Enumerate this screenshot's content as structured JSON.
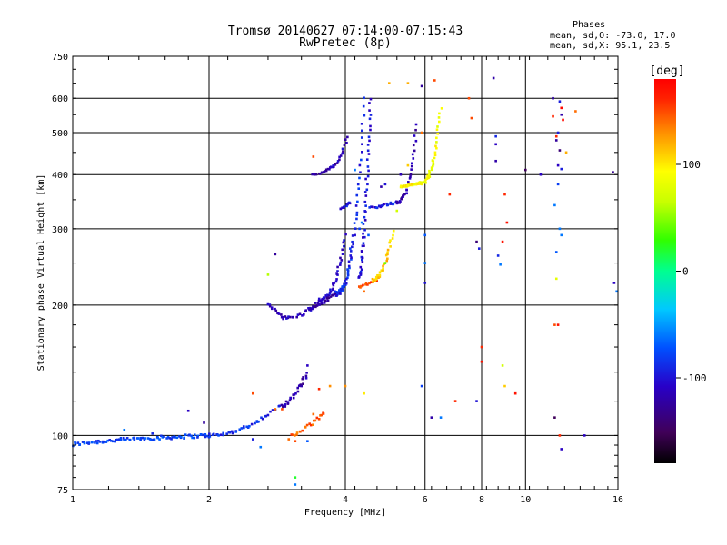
{
  "chart_data": {
    "type": "scatter",
    "title": "Tromsø 20140627 07:14:00-07:15:43",
    "subtitle": "RwPretec (8p)",
    "xlabel": "Frequency [MHz]",
    "ylabel": "Stationary phase Virtual Height [km]",
    "x_scale": "log",
    "y_scale": "log",
    "xlim": [
      1,
      16
    ],
    "ylim": [
      75,
      750
    ],
    "x_ticks": [
      1,
      2,
      4,
      6,
      8,
      10,
      16
    ],
    "x_tick_labels": [
      "1",
      "2",
      "4",
      "6",
      "8",
      "10",
      "16"
    ],
    "y_ticks": [
      75,
      100,
      200,
      300,
      400,
      500,
      600,
      750
    ],
    "y_tick_labels": [
      "75",
      "100",
      "200",
      "300",
      "400",
      "500",
      "600",
      "750"
    ],
    "grid": true,
    "legend": {
      "placement": "top-right",
      "title": "Phases",
      "lines": [
        "mean, sd,O: -73.0, 17.0",
        "mean, sd,X:  95.1, 23.5"
      ]
    },
    "colorbar": {
      "title": "[deg]",
      "range": [
        -180,
        180
      ],
      "ticks": [
        100,
        0,
        -100
      ],
      "tick_labels": [
        "100",
        "0",
        "-100"
      ]
    },
    "traces": [
      {
        "f0": 1.0,
        "f1": 2.0,
        "h0": 95,
        "h1": 100,
        "shape": 0.6,
        "n": 90,
        "phase": -80,
        "jit": 2
      },
      {
        "f0": 2.0,
        "f1": 2.9,
        "h0": 100,
        "h1": 118,
        "shape": 1.9,
        "n": 40,
        "phase": -88,
        "jit": 2
      },
      {
        "f0": 2.9,
        "f1": 3.3,
        "h0": 118,
        "h1": 140,
        "shape": 1.7,
        "n": 25,
        "phase": -120,
        "jit": 4
      },
      {
        "f0": 2.7,
        "f1": 2.95,
        "h0": 200,
        "h1": 186,
        "shape": 1.0,
        "n": 15,
        "phase": -110,
        "jit": 3
      },
      {
        "f0": 2.95,
        "f1": 3.5,
        "h0": 187,
        "h1": 205,
        "shape": 2.2,
        "n": 20,
        "phase": -112,
        "jit": 3
      },
      {
        "f0": 3.5,
        "f1": 4.0,
        "h0": 205,
        "h1": 290,
        "shape": 2.4,
        "n": 40,
        "phase": -110,
        "jit": 4
      },
      {
        "f0": 3.3,
        "f1": 3.8,
        "h0": 196,
        "h1": 213,
        "shape": 1.6,
        "n": 25,
        "phase": -118,
        "jit": 2
      },
      {
        "f0": 3.8,
        "f1": 4.4,
        "h0": 213,
        "h1": 600,
        "shape": 2.8,
        "n": 65,
        "phase": -90,
        "jit": 6
      },
      {
        "f0": 3.4,
        "f1": 3.7,
        "h0": 400,
        "h1": 412,
        "shape": 1.5,
        "n": 14,
        "phase": -125,
        "jit": 3
      },
      {
        "f0": 3.7,
        "f1": 4.05,
        "h0": 415,
        "h1": 490,
        "shape": 1.8,
        "n": 18,
        "phase": -110,
        "jit": 4
      },
      {
        "f0": 3.9,
        "f1": 4.1,
        "h0": 332,
        "h1": 345,
        "shape": 1.0,
        "n": 12,
        "phase": -100,
        "jit": 3
      },
      {
        "f0": 4.3,
        "f1": 4.55,
        "h0": 230,
        "h1": 600,
        "shape": 1.5,
        "n": 50,
        "phase": -100,
        "jit": 8
      },
      {
        "f0": 4.55,
        "f1": 5.2,
        "h0": 335,
        "h1": 345,
        "shape": 1.0,
        "n": 25,
        "phase": -95,
        "jit": 4
      },
      {
        "f0": 5.2,
        "f1": 5.75,
        "h0": 345,
        "h1": 520,
        "shape": 2.5,
        "n": 35,
        "phase": -118,
        "jit": 5
      },
      {
        "f0": 4.3,
        "f1": 4.7,
        "h0": 220,
        "h1": 228,
        "shape": 1.0,
        "n": 14,
        "phase": 150,
        "jit": 2
      },
      {
        "f0": 4.6,
        "f1": 5.1,
        "h0": 228,
        "h1": 295,
        "shape": 2.0,
        "n": 32,
        "phase": 110,
        "jit": 4
      },
      {
        "f0": 5.3,
        "f1": 5.85,
        "h0": 375,
        "h1": 382,
        "shape": 1.0,
        "n": 28,
        "phase": 95,
        "jit": 3
      },
      {
        "f0": 5.85,
        "f1": 6.5,
        "h0": 382,
        "h1": 570,
        "shape": 2.6,
        "n": 40,
        "phase": 88,
        "jit": 5
      },
      {
        "f0": 3.05,
        "f1": 3.6,
        "h0": 100,
        "h1": 113,
        "shape": 1.3,
        "n": 22,
        "phase": 145,
        "jit": 2
      }
    ],
    "scatter_points": [
      [
        1.95,
        107,
        -125
      ],
      [
        1.8,
        114,
        -110
      ],
      [
        1.5,
        101,
        -90
      ],
      [
        1.3,
        103,
        -60
      ],
      [
        2.1,
        100,
        -75
      ],
      [
        2.6,
        94,
        -60
      ],
      [
        2.5,
        98,
        -95
      ],
      [
        3.1,
        80,
        20
      ],
      [
        3.1,
        77,
        -60
      ],
      [
        2.7,
        235,
        60
      ],
      [
        2.8,
        262,
        -125
      ],
      [
        3.4,
        440,
        150
      ],
      [
        4.4,
        215,
        140
      ],
      [
        4.9,
        250,
        40
      ],
      [
        5.2,
        330,
        70
      ],
      [
        5.5,
        420,
        110
      ],
      [
        5.9,
        500,
        140
      ],
      [
        6.0,
        250,
        -60
      ],
      [
        6.0,
        290,
        -70
      ],
      [
        6.0,
        225,
        -100
      ],
      [
        6.3,
        660,
        150
      ],
      [
        5.9,
        640,
        -125
      ],
      [
        5.0,
        650,
        120
      ],
      [
        5.5,
        650,
        120
      ],
      [
        4.4,
        125,
        100
      ],
      [
        5.9,
        130,
        -80
      ],
      [
        6.2,
        110,
        -120
      ],
      [
        6.5,
        110,
        -60
      ],
      [
        6.8,
        360,
        160
      ],
      [
        7.0,
        120,
        160
      ],
      [
        7.5,
        600,
        150
      ],
      [
        7.6,
        540,
        150
      ],
      [
        7.8,
        120,
        -100
      ],
      [
        7.8,
        280,
        -140
      ],
      [
        7.9,
        270,
        -95
      ],
      [
        8.0,
        160,
        160
      ],
      [
        8.0,
        148,
        170
      ],
      [
        8.5,
        668,
        -120
      ],
      [
        8.6,
        490,
        -90
      ],
      [
        8.6,
        430,
        -120
      ],
      [
        8.6,
        470,
        -110
      ],
      [
        8.7,
        260,
        -90
      ],
      [
        8.8,
        248,
        -60
      ],
      [
        8.9,
        145,
        70
      ],
      [
        8.9,
        280,
        170
      ],
      [
        9.0,
        360,
        160
      ],
      [
        9.1,
        310,
        170
      ],
      [
        9.0,
        130,
        110
      ],
      [
        9.5,
        125,
        170
      ],
      [
        10.0,
        410,
        -150
      ],
      [
        10.8,
        400,
        -110
      ],
      [
        11.5,
        600,
        -120
      ],
      [
        11.5,
        545,
        160
      ],
      [
        11.7,
        490,
        160
      ],
      [
        11.7,
        480,
        -125
      ],
      [
        11.9,
        590,
        -95
      ],
      [
        12.0,
        570,
        175
      ],
      [
        12.0,
        550,
        -120
      ],
      [
        12.1,
        535,
        175
      ],
      [
        11.8,
        500,
        -95
      ],
      [
        11.9,
        455,
        -140
      ],
      [
        11.8,
        420,
        -110
      ],
      [
        12.0,
        412,
        -95
      ],
      [
        11.6,
        340,
        -60
      ],
      [
        11.8,
        380,
        -80
      ],
      [
        11.9,
        300,
        -60
      ],
      [
        12.0,
        290,
        -60
      ],
      [
        11.7,
        265,
        -70
      ],
      [
        11.7,
        230,
        80
      ],
      [
        11.6,
        180,
        150
      ],
      [
        11.8,
        180,
        170
      ],
      [
        11.6,
        110,
        -150
      ],
      [
        11.9,
        100,
        160
      ],
      [
        12.0,
        93,
        -110
      ],
      [
        12.3,
        450,
        120
      ],
      [
        12.9,
        560,
        140
      ],
      [
        13.5,
        100,
        -110
      ],
      [
        15.6,
        405,
        -130
      ],
      [
        15.7,
        225,
        -110
      ],
      [
        15.9,
        215,
        -60
      ],
      [
        4.0,
        130,
        130
      ],
      [
        3.7,
        130,
        130
      ],
      [
        3.4,
        112,
        140
      ],
      [
        3.5,
        128,
        160
      ],
      [
        3.3,
        97,
        -70
      ],
      [
        3.1,
        97,
        150
      ],
      [
        3.0,
        98,
        140
      ],
      [
        2.9,
        115,
        150
      ],
      [
        2.8,
        115,
        140
      ],
      [
        2.5,
        125,
        150
      ],
      [
        3.3,
        145,
        -110
      ],
      [
        3.2,
        130,
        -120
      ],
      [
        4.3,
        300,
        -80
      ],
      [
        4.35,
        310,
        -60
      ],
      [
        4.1,
        270,
        -80
      ],
      [
        4.8,
        375,
        -120
      ],
      [
        4.9,
        380,
        -100
      ],
      [
        5.3,
        400,
        -115
      ],
      [
        4.2,
        410,
        -60
      ],
      [
        4.5,
        290,
        -70
      ]
    ]
  }
}
